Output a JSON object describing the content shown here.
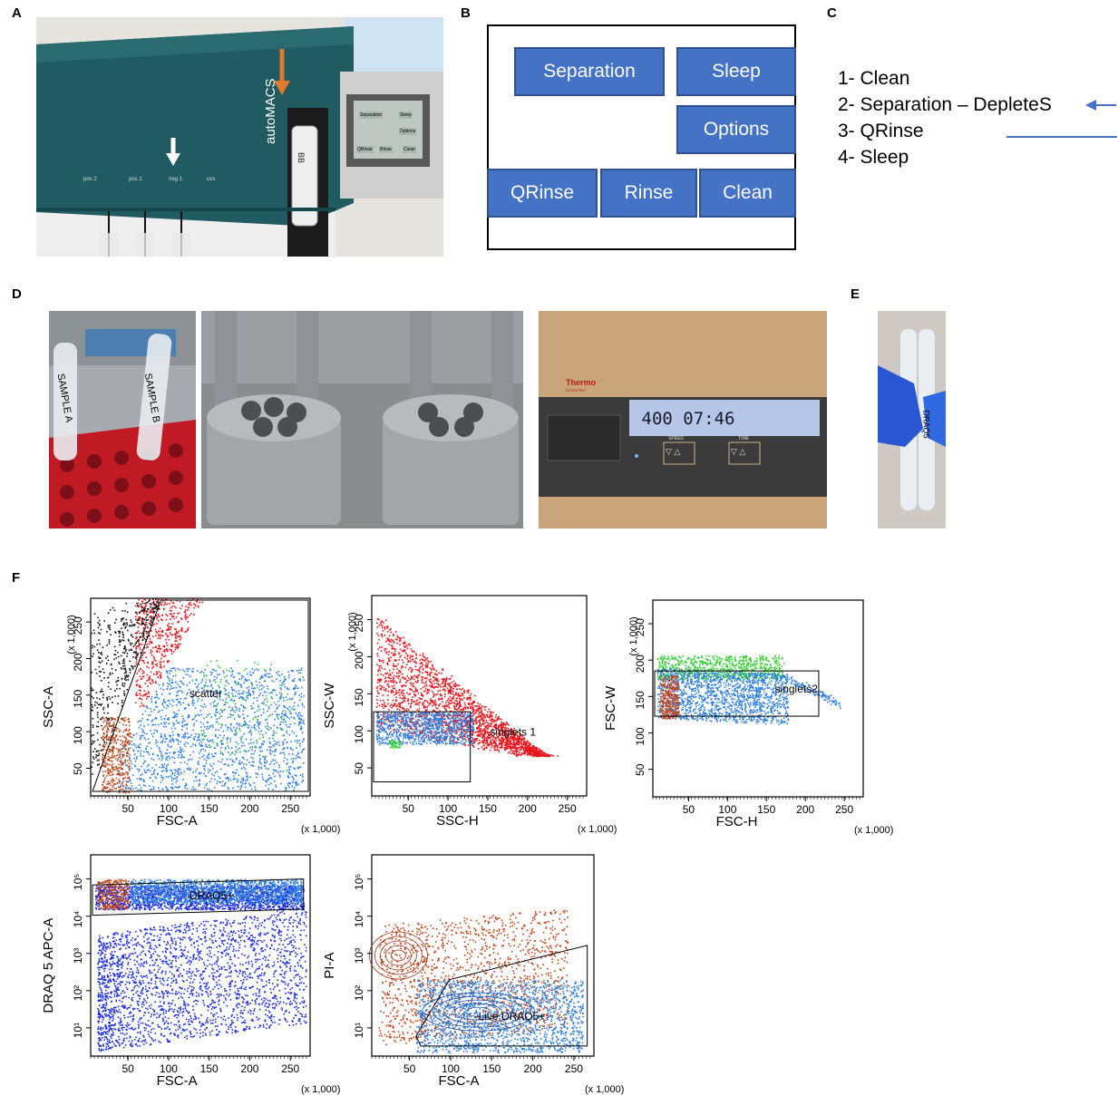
{
  "panels": {
    "A": "A",
    "B": "B",
    "C": "C",
    "D": "D",
    "E": "E",
    "F": "F"
  },
  "panel_a": {
    "device_brand": "autoMACS",
    "port_labels": [
      "pos 2",
      "pos 1",
      "neg 1",
      "uxx"
    ],
    "screen_buttons": [
      "Separation",
      "Sleep",
      "Options",
      "QRinse",
      "Rinse",
      "Clean"
    ],
    "tube_label": "BB",
    "colors": {
      "arrow_orange": "#e07a2c",
      "arrow_white": "#ffffff",
      "body": "#1f5b60"
    }
  },
  "panel_b": {
    "buttons": {
      "separation": "Separation",
      "sleep": "Sleep",
      "options": "Options",
      "qrinse": "QRinse",
      "rinse": "Rinse",
      "clean": "Clean"
    },
    "button_color": "#4472c4"
  },
  "panel_c": {
    "steps": [
      "1- Clean",
      "2- Separation – DepleteS",
      "3- QRinse",
      "4- Sleep"
    ],
    "arrow_color": "#4472c4"
  },
  "panel_d": {
    "tube_labels": [
      "SAMPLE A",
      "SAMPLE B"
    ],
    "centrifuge_brand": "Thermo",
    "centrifuge_brand_sub": "SCIENTIFIC",
    "display_readout": "400 07:46",
    "control_labels": [
      "SPEED",
      "TIME"
    ]
  },
  "panel_e": {
    "tube_label": "DRAQ5"
  },
  "panel_f": {
    "plots": [
      {
        "xlabel": "FSC-A",
        "ylabel": "SSC-A",
        "unit": "(x 1,000)",
        "gate": "scatter",
        "xticks": [
          "50",
          "100",
          "150",
          "200",
          "250"
        ],
        "yticks": [
          "50",
          "100",
          "150",
          "200",
          "250"
        ]
      },
      {
        "xlabel": "SSC-H",
        "ylabel": "SSC-W",
        "unit": "(x 1,000)",
        "gate": "singlets 1",
        "xticks": [
          "50",
          "100",
          "150",
          "200",
          "250"
        ],
        "yticks": [
          "50",
          "100",
          "150",
          "200",
          "250"
        ]
      },
      {
        "xlabel": "FSC-H",
        "ylabel": "FSC-W",
        "unit": "(x 1,000)",
        "gate": "singlets2",
        "xticks": [
          "50",
          "100",
          "150",
          "200",
          "250"
        ],
        "yticks": [
          "50",
          "100",
          "150",
          "200",
          "250"
        ]
      },
      {
        "xlabel": "FSC-A",
        "ylabel": "DRAQ 5 APC-A",
        "unit": "(x 1,000)",
        "gate": "DRAQ5+",
        "xticks": [
          "50",
          "100",
          "150",
          "200",
          "250"
        ],
        "yticks": [
          "10¹",
          "10²",
          "10³",
          "10⁴",
          "10⁵"
        ]
      },
      {
        "xlabel": "FSC-A",
        "ylabel": "PI-A",
        "unit": "(x 1,000)",
        "gate": "Live DRAQ5+",
        "xticks": [
          "50",
          "100",
          "150",
          "200",
          "250"
        ],
        "yticks": [
          "10¹",
          "10²",
          "10³",
          "10⁴",
          "10⁵"
        ]
      }
    ],
    "colors": {
      "red": "#e8141b",
      "blue": "#2f7fe0",
      "darkblue": "#1a2be0",
      "orange": "#c0451a",
      "green": "#2fd12f",
      "black": "#111111"
    }
  }
}
